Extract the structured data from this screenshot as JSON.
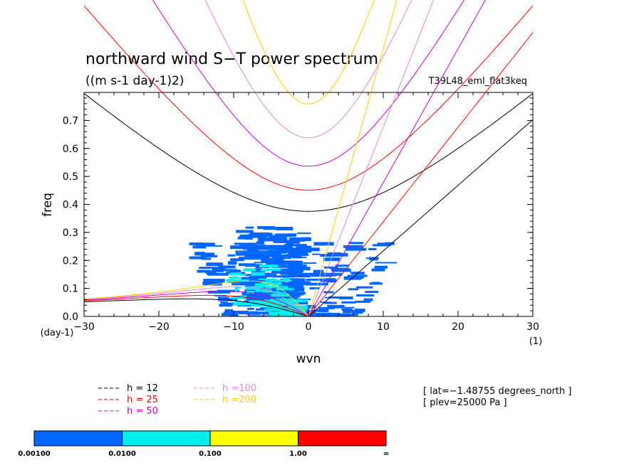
{
  "chart_data": {
    "type": "heatmap",
    "title": "northward wind S−T power spectrum",
    "units_label": "((m s-1 day-1)2)",
    "run_label": "T39L48_eml_flat3keq",
    "xlabel": "wvn",
    "ylabel": "freq",
    "x_unit_label": "(1)",
    "y_unit_label": "(day-1)",
    "xlim": [
      -30,
      30
    ],
    "ylim": [
      0,
      0.8
    ],
    "x_ticks": [
      "−30",
      "−20",
      "−10",
      "0",
      "10",
      "20",
      "30"
    ],
    "x_tick_values": [
      -30,
      -20,
      -10,
      0,
      10,
      20,
      30
    ],
    "y_ticks": [
      "0.0",
      "0.1",
      "0.2",
      "0.3",
      "0.4",
      "0.5",
      "0.6",
      "0.7"
    ],
    "y_tick_values": [
      0,
      0.1,
      0.2,
      0.3,
      0.4,
      0.5,
      0.6,
      0.7
    ],
    "dispersion_curves": [
      {
        "label": "h = 12",
        "h": 12,
        "color": "#000000"
      },
      {
        "label": "h = 25",
        "h": 25,
        "color": "#ff0000"
      },
      {
        "label": "h = 50",
        "h": 50,
        "color": "#cc00cc"
      },
      {
        "label": "h =100",
        "h": 100,
        "color": "#dd88dd"
      },
      {
        "label": "h =200",
        "h": 200,
        "color": "#ffcc00"
      }
    ],
    "info_lines": [
      "[ lat=−1.48755 degrees_north ]",
      "[ plev=25000 Pa ]"
    ],
    "colorbar": {
      "colors": [
        "#0066ff",
        "#00eeee",
        "#ffff00",
        "#ff0000"
      ],
      "labels": [
        "0.00100",
        "0.0100",
        "0.100",
        "1.00",
        "∞"
      ]
    },
    "power_regions": [
      {
        "level": 1,
        "xmin": -16,
        "xmax": 12,
        "ymin": 0.0,
        "ymax": 0.27
      },
      {
        "level": 1,
        "xmin": -9,
        "xmax": 0,
        "ymin": 0.05,
        "ymax": 0.32
      },
      {
        "level": 2,
        "xmin": -11,
        "xmax": -2,
        "ymin": 0.04,
        "ymax": 0.18
      },
      {
        "level": 2,
        "xmin": -6,
        "xmax": 0,
        "ymin": 0.0,
        "ymax": 0.06
      }
    ]
  }
}
